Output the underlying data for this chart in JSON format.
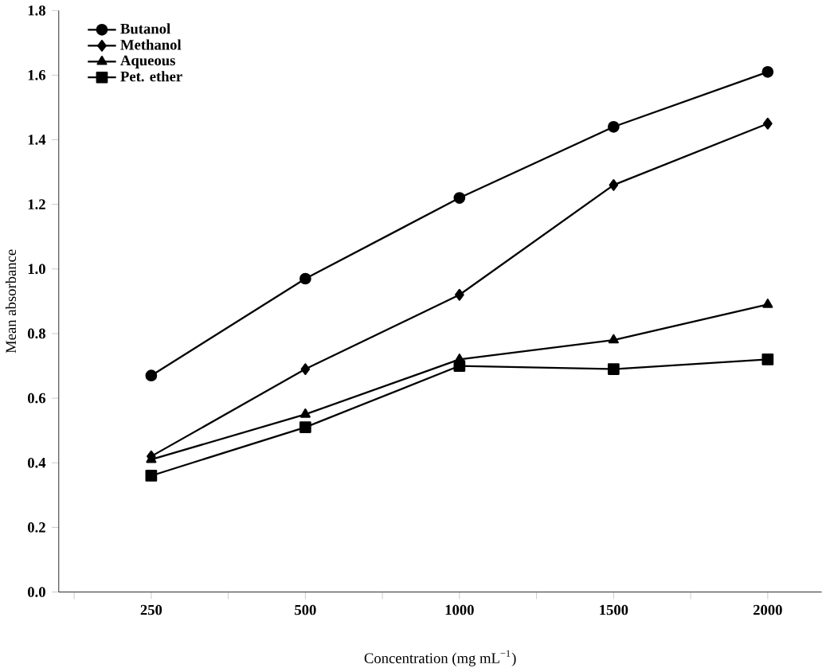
{
  "chart_data": {
    "type": "line",
    "xlabel": "Concentration (mg mL$^{−1}$)",
    "ylabel": "Mean absorbance",
    "categories": [
      "250",
      "500",
      "1000",
      "1500",
      "2000"
    ],
    "series": [
      {
        "name": "Butanol",
        "color": "#000000",
        "marker": "circle",
        "values": [
          0.67,
          0.97,
          1.22,
          1.44,
          1.61
        ]
      },
      {
        "name": "Methanol",
        "color": "#000000",
        "marker": "diamond",
        "values": [
          0.42,
          0.69,
          0.92,
          1.26,
          1.45
        ]
      },
      {
        "name": "Aqueous",
        "color": "#000000",
        "marker": "triangle",
        "values": [
          0.41,
          0.55,
          0.72,
          0.78,
          0.89
        ]
      },
      {
        "name": "Pet. ether",
        "color": "#000000",
        "marker": "square",
        "values": [
          0.36,
          0.51,
          0.7,
          0.69,
          0.72
        ]
      }
    ],
    "ylim": [
      0,
      1.8
    ],
    "yticks": [
      {
        "value": 0,
        "label": "0.0"
      },
      {
        "value": 0.2,
        "label": "0.2"
      },
      {
        "value": 0.4,
        "label": "0.4"
      },
      {
        "value": 0.6,
        "label": "0.6"
      },
      {
        "value": 0.8,
        "label": "0.8"
      },
      {
        "value": 1.0,
        "label": "1.0"
      },
      {
        "value": 1.2,
        "label": "1.2"
      },
      {
        "value": 1.4,
        "label": "1.4"
      },
      {
        "value": 1.6,
        "label": "1.6"
      },
      {
        "value": 1.8,
        "label": "1.8"
      }
    ],
    "legend": "top left",
    "grid": false
  }
}
